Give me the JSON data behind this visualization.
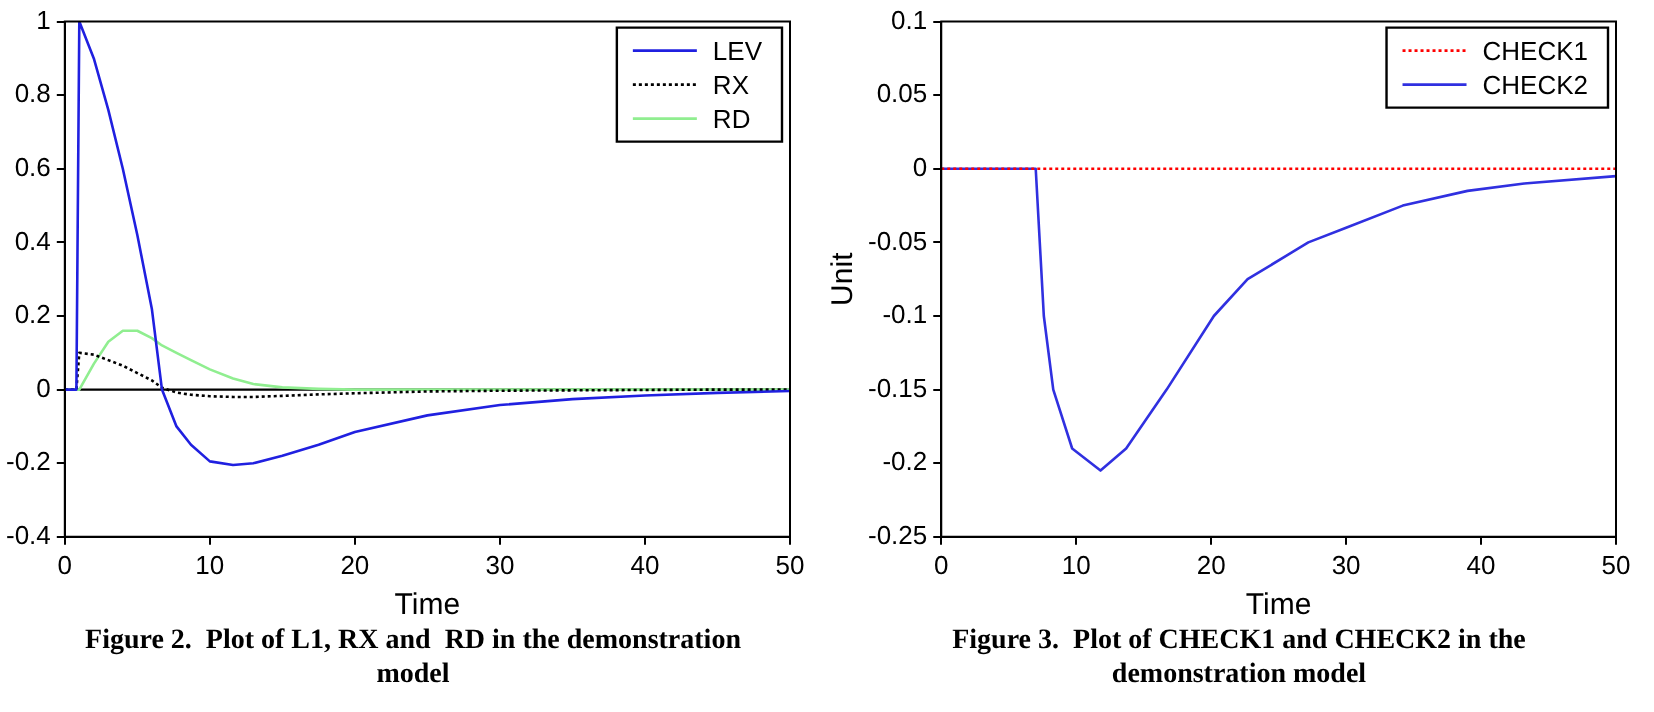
{
  "chart_data": [
    {
      "type": "line",
      "title": "Figure 2.  Plot of L1, RX and  RD in the demonstration model",
      "xlabel": "Time",
      "x": [
        0,
        0.8,
        1,
        2,
        3,
        4,
        5,
        6,
        6.7,
        7.7,
        8.7,
        10,
        11.6,
        13,
        15,
        17.5,
        20,
        25,
        30,
        35,
        40,
        45,
        50
      ],
      "series": [
        {
          "name": "LEV",
          "color": "#2020e0",
          "line_style": "solid",
          "values": [
            0,
            0,
            1,
            0.9,
            0.76,
            0.6,
            0.42,
            0.22,
            0,
            -0.1,
            -0.15,
            -0.195,
            -0.205,
            -0.2,
            -0.18,
            -0.15,
            -0.115,
            -0.07,
            -0.042,
            -0.026,
            -0.016,
            -0.009,
            -0.004
          ]
        },
        {
          "name": "RX",
          "color": "#000000",
          "line_style": "dotted",
          "values": [
            0,
            0,
            0.1,
            0.095,
            0.08,
            0.065,
            0.045,
            0.025,
            0.005,
            -0.008,
            -0.014,
            -0.018,
            -0.02,
            -0.02,
            -0.017,
            -0.013,
            -0.01,
            -0.005,
            -0.003,
            -0.002,
            -0.001,
            0,
            0
          ]
        },
        {
          "name": "RD",
          "color": "#90ee90",
          "line_style": "solid",
          "values": [
            0,
            0,
            0,
            0.07,
            0.13,
            0.16,
            0.16,
            0.14,
            0.12,
            0.1,
            0.08,
            0.055,
            0.03,
            0.015,
            0.006,
            0.002,
            0,
            0,
            0,
            0,
            0,
            0,
            0
          ]
        }
      ],
      "xlim": [
        0,
        50
      ],
      "xticks": [
        0,
        10,
        20,
        30,
        40,
        50
      ],
      "ylim": [
        -0.4,
        1
      ],
      "yticks": [
        -0.4,
        -0.2,
        0,
        0.2,
        0.4,
        0.6,
        0.8,
        1
      ],
      "ref_lines": [
        {
          "axis": "y",
          "value": 0,
          "color": "#000000"
        }
      ],
      "legend": "top right",
      "grid": false,
      "marker": "none"
    },
    {
      "type": "line",
      "title": "Figure 3.  Plot of CHECK1 and CHECK2 in the demonstration model",
      "xlabel": "Time",
      "ylabel": "Unit",
      "x": [
        0,
        7,
        7.6,
        8.3,
        9.7,
        11.8,
        13.7,
        16.7,
        20.2,
        22.7,
        27.2,
        30,
        34.2,
        39,
        43.2,
        50
      ],
      "series": [
        {
          "name": "CHECK1",
          "color": "#ff0000",
          "line_style": "dotted",
          "values": [
            0,
            0,
            0,
            0,
            0,
            0,
            0,
            0,
            0,
            0,
            0,
            0,
            0,
            0,
            0,
            0
          ]
        },
        {
          "name": "CHECK2",
          "color": "#3030e0",
          "line_style": "solid",
          "values": [
            0,
            0,
            -0.1,
            -0.15,
            -0.19,
            -0.205,
            -0.19,
            -0.15,
            -0.1,
            -0.075,
            -0.05,
            -0.04,
            -0.025,
            -0.015,
            -0.01,
            -0.005
          ]
        }
      ],
      "xlim": [
        0,
        50
      ],
      "xticks": [
        0,
        10,
        20,
        30,
        40,
        50
      ],
      "ylim": [
        -0.25,
        0.1
      ],
      "yticks": [
        -0.25,
        -0.2,
        -0.15,
        -0.1,
        -0.05,
        0,
        0.05,
        0.1
      ],
      "legend": "top right",
      "grid": false,
      "marker": "none"
    }
  ]
}
